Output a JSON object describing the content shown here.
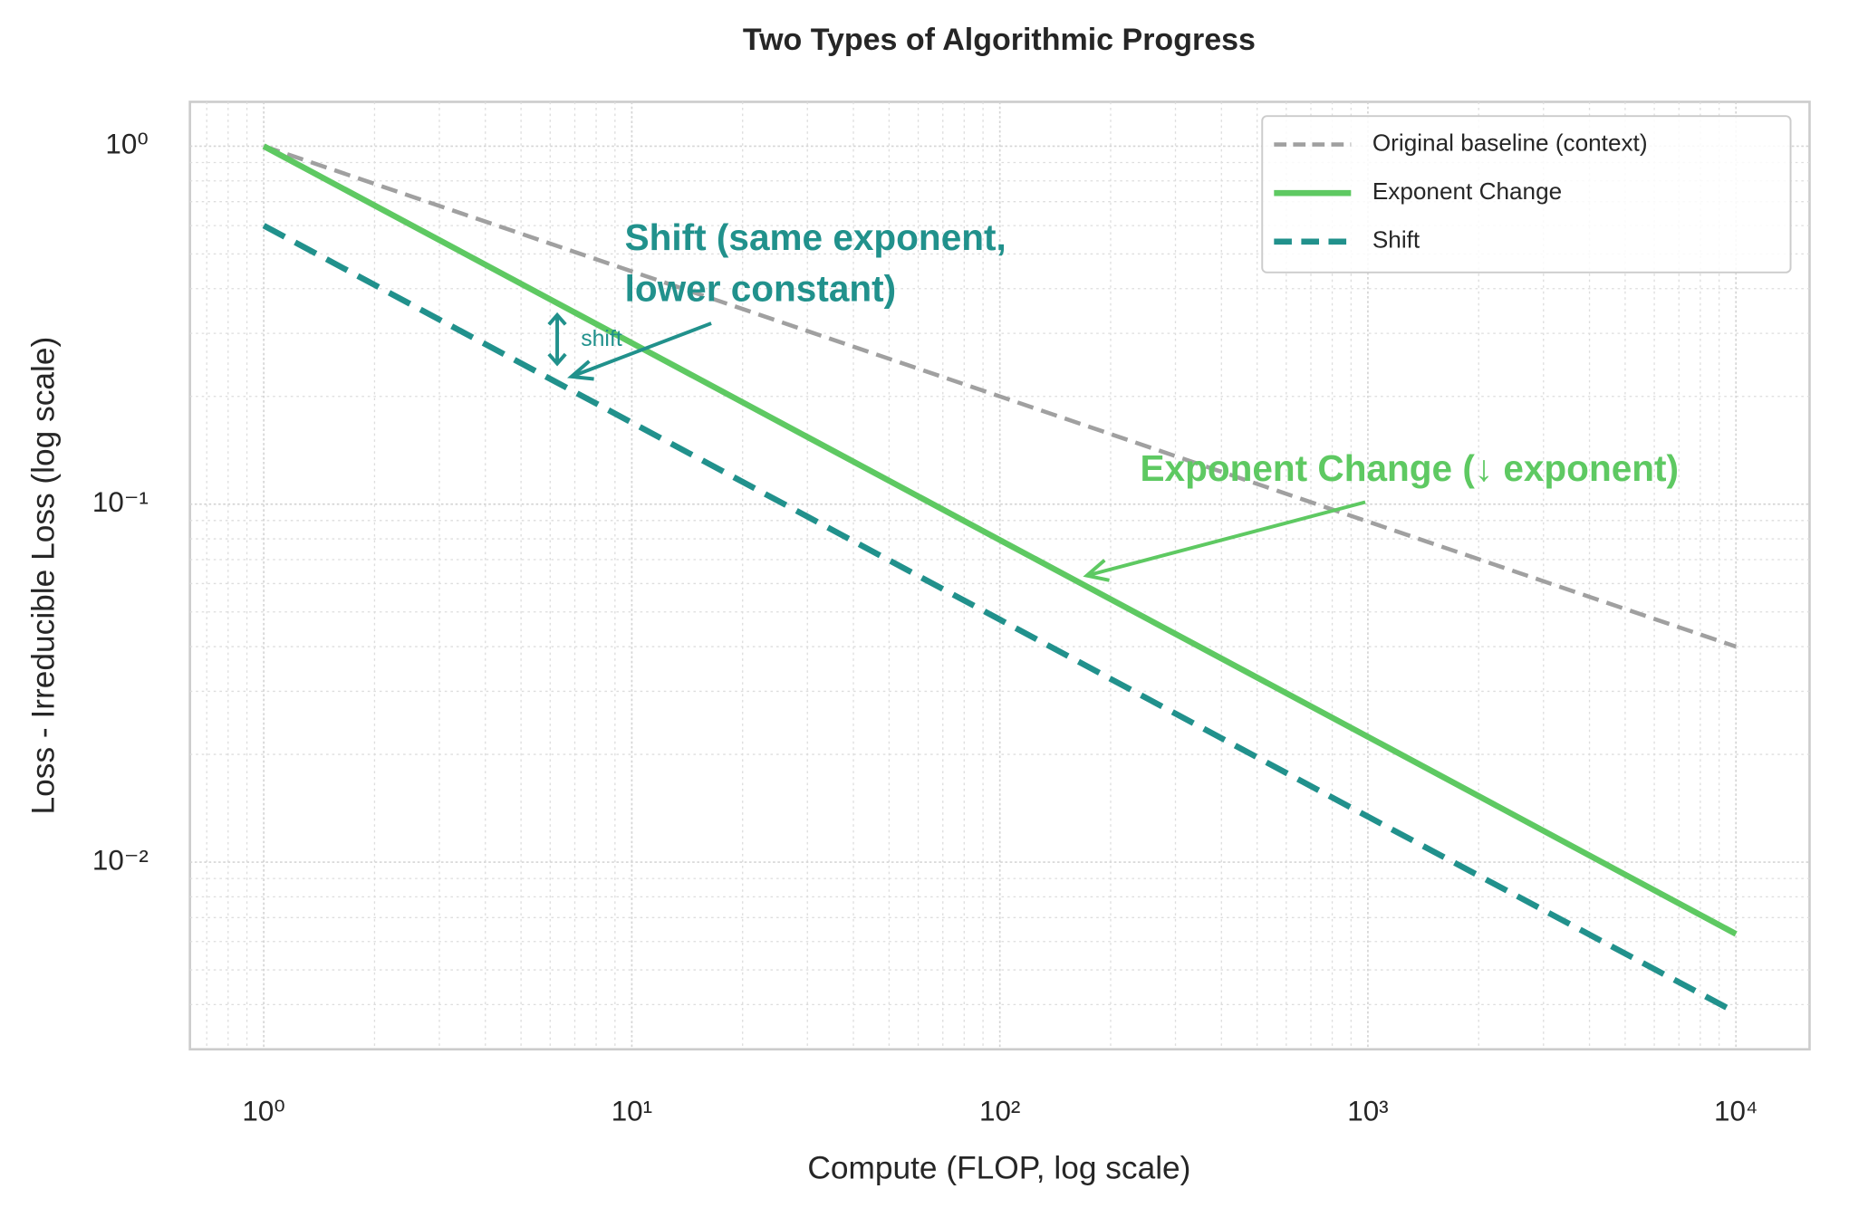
{
  "chart_data": {
    "type": "line",
    "title": "Two Types of Algorithmic Progress",
    "x_label": "Compute (FLOP, log scale)",
    "y_label": "Loss - Irreducible Loss (log scale)",
    "x": [
      1,
      10,
      100,
      1000,
      10000
    ],
    "series": [
      {
        "name": "Original baseline (context)",
        "color": "#a0a0a0",
        "linestyle": "dashed",
        "linewidth": 3.5,
        "values": [
          1,
          0.447,
          0.2,
          0.0894,
          0.04
        ]
      },
      {
        "name": "Exponent Change",
        "color": "#5ec962",
        "linestyle": "solid",
        "linewidth": 5,
        "values": [
          1,
          0.282,
          0.0794,
          0.0224,
          0.0063
        ]
      },
      {
        "name": "Shift",
        "color": "#21918c",
        "linestyle": "dashed",
        "linewidth": 5,
        "values": [
          0.6,
          0.169,
          0.0476,
          0.0134,
          0.0038
        ]
      }
    ],
    "xscale": "log",
    "yscale": "log",
    "xlim": [
      0.63,
      15849
    ],
    "ylim": [
      0.003,
      1.33
    ],
    "xticks": [
      {
        "value": 1,
        "label": "10⁰"
      },
      {
        "value": 10,
        "label": "10¹"
      },
      {
        "value": 100,
        "label": "10²"
      },
      {
        "value": 1000,
        "label": "10³"
      },
      {
        "value": 10000,
        "label": "10⁴"
      }
    ],
    "yticks": [
      {
        "value": 0.01,
        "label": "10⁻²"
      },
      {
        "value": 0.1,
        "label": "10⁻¹"
      },
      {
        "value": 1,
        "label": "10⁰"
      }
    ],
    "grid": true,
    "minor_grid": true,
    "legend": "upper right",
    "annotations": [
      {
        "text": [
          "Shift (same exponent,",
          "lower constant)"
        ],
        "color": "#21918c"
      },
      {
        "text": [
          "Exponent Change (↓ exponent)"
        ],
        "color": "#5ec962"
      },
      {
        "text": [
          "shift"
        ],
        "color": "#21918c"
      }
    ]
  }
}
